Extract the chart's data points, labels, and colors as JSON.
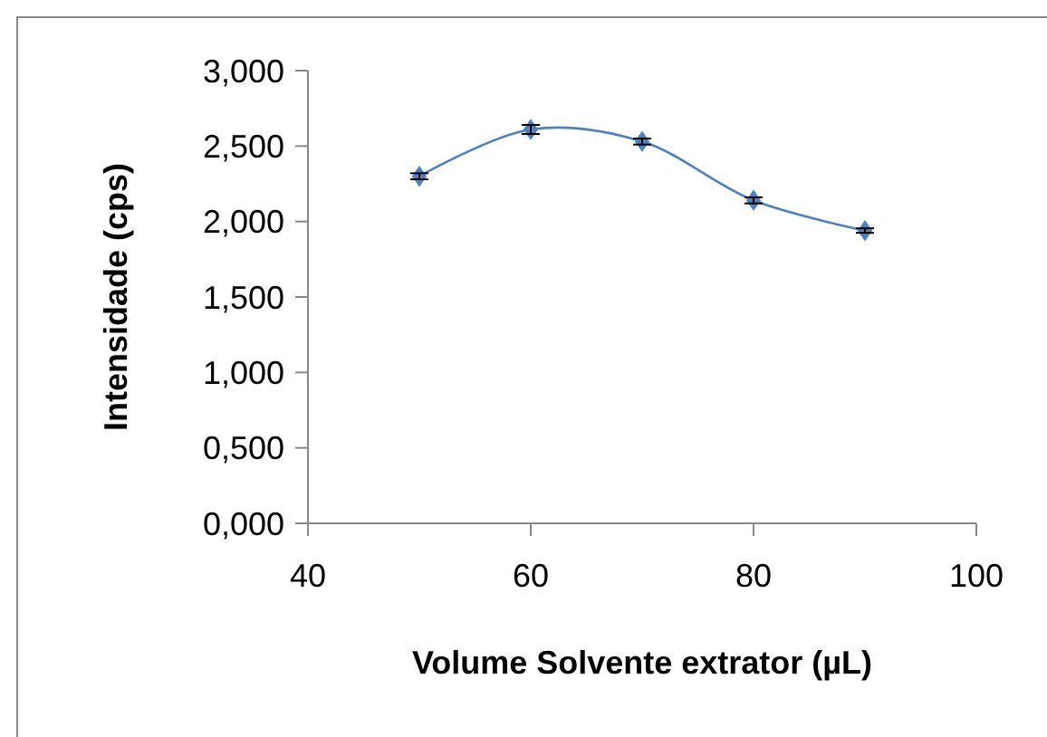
{
  "chart_data": {
    "type": "line",
    "xlabel": "Volume Solvente extrator (µL)",
    "ylabel": "Intensidade (cps)",
    "x": [
      50,
      60,
      70,
      80,
      90
    ],
    "series": [
      {
        "color": "#4f81bd",
        "values": [
          2.3,
          2.61,
          2.53,
          2.14,
          1.94
        ],
        "errors": [
          0.02,
          0.03,
          0.02,
          0.02,
          0.015
        ]
      }
    ],
    "xlim": [
      40,
      100
    ],
    "xticks": [
      40,
      60,
      80,
      100
    ],
    "ylim": [
      0,
      3
    ],
    "yticks": [
      {
        "value": 0,
        "label": "0,000"
      },
      {
        "value": 0.5,
        "label": "0,500"
      },
      {
        "value": 1,
        "label": "1,000"
      },
      {
        "value": 1.5,
        "label": "1,500"
      },
      {
        "value": 2,
        "label": "2,000"
      },
      {
        "value": 2.5,
        "label": "2,500"
      },
      {
        "value": 3,
        "label": "3,000"
      }
    ],
    "marker": "diamond",
    "grid": false
  }
}
